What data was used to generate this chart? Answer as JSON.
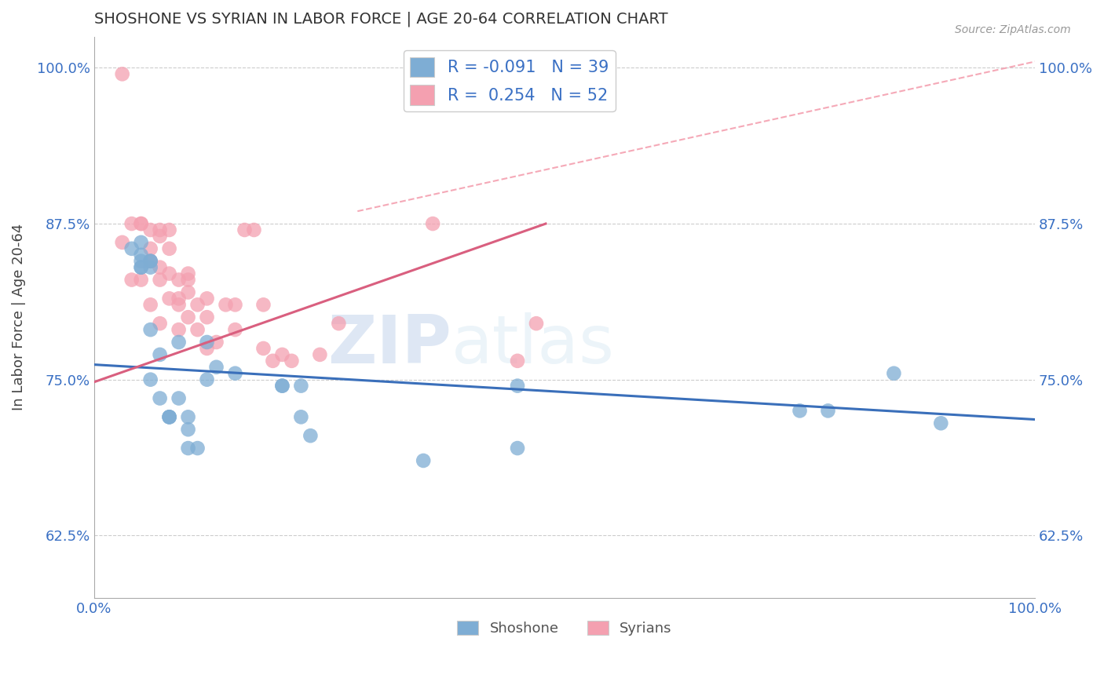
{
  "title": "SHOSHONE VS SYRIAN IN LABOR FORCE | AGE 20-64 CORRELATION CHART",
  "source_text": "Source: ZipAtlas.com",
  "xlabel": "",
  "ylabel": "In Labor Force | Age 20-64",
  "xlim": [
    0.0,
    1.0
  ],
  "ylim": [
    0.575,
    1.025
  ],
  "yticks": [
    0.625,
    0.75,
    0.875,
    1.0
  ],
  "ytick_labels": [
    "62.5%",
    "75.0%",
    "87.5%",
    "100.0%"
  ],
  "watermark_zip": "ZIP",
  "watermark_atlas": "atlas",
  "legend_r_blue": "-0.091",
  "legend_n_blue": "39",
  "legend_r_pink": "0.254",
  "legend_n_pink": "52",
  "blue_color": "#7eadd4",
  "pink_color": "#f4a0b0",
  "blue_line_color": "#3a6fba",
  "pink_line_color": "#d95f7f",
  "shoshone_points_x": [
    0.04,
    0.05,
    0.05,
    0.05,
    0.05,
    0.05,
    0.06,
    0.06,
    0.06,
    0.06,
    0.06,
    0.07,
    0.07,
    0.08,
    0.08,
    0.08,
    0.09,
    0.09,
    0.1,
    0.1,
    0.1,
    0.11,
    0.12,
    0.12,
    0.13,
    0.15,
    0.2,
    0.2,
    0.22,
    0.22,
    0.23,
    0.35,
    0.45,
    0.45,
    0.75,
    0.78,
    0.85,
    0.9
  ],
  "shoshone_points_y": [
    0.855,
    0.84,
    0.84,
    0.85,
    0.86,
    0.845,
    0.84,
    0.845,
    0.845,
    0.79,
    0.75,
    0.77,
    0.735,
    0.72,
    0.72,
    0.72,
    0.735,
    0.78,
    0.72,
    0.71,
    0.695,
    0.695,
    0.78,
    0.75,
    0.76,
    0.755,
    0.745,
    0.745,
    0.72,
    0.745,
    0.705,
    0.685,
    0.695,
    0.745,
    0.725,
    0.725,
    0.755,
    0.715
  ],
  "syrian_points_x": [
    0.03,
    0.03,
    0.04,
    0.04,
    0.05,
    0.05,
    0.05,
    0.06,
    0.06,
    0.06,
    0.06,
    0.07,
    0.07,
    0.07,
    0.07,
    0.07,
    0.08,
    0.08,
    0.08,
    0.08,
    0.09,
    0.09,
    0.09,
    0.09,
    0.1,
    0.1,
    0.1,
    0.1,
    0.11,
    0.11,
    0.12,
    0.12,
    0.12,
    0.13,
    0.14,
    0.15,
    0.15,
    0.16,
    0.17,
    0.18,
    0.18,
    0.19,
    0.2,
    0.21,
    0.24,
    0.26,
    0.36,
    0.45,
    0.47
  ],
  "syrian_points_y": [
    0.995,
    0.86,
    0.875,
    0.83,
    0.875,
    0.875,
    0.83,
    0.87,
    0.855,
    0.845,
    0.81,
    0.87,
    0.865,
    0.84,
    0.83,
    0.795,
    0.87,
    0.855,
    0.835,
    0.815,
    0.83,
    0.815,
    0.81,
    0.79,
    0.835,
    0.83,
    0.82,
    0.8,
    0.81,
    0.79,
    0.815,
    0.8,
    0.775,
    0.78,
    0.81,
    0.81,
    0.79,
    0.87,
    0.87,
    0.81,
    0.775,
    0.765,
    0.77,
    0.765,
    0.77,
    0.795,
    0.875,
    0.765,
    0.795
  ],
  "background_color": "#ffffff",
  "grid_color": "#cccccc",
  "ref_line_x_start": 0.28,
  "ref_line_y_start": 0.885,
  "ref_line_x_end": 1.0,
  "ref_line_y_end": 1.005,
  "blue_trend_x_start": 0.0,
  "blue_trend_y_start": 0.762,
  "blue_trend_x_end": 1.0,
  "blue_trend_y_end": 0.718,
  "pink_trend_x_start": 0.0,
  "pink_trend_y_start": 0.748,
  "pink_trend_x_end": 0.48,
  "pink_trend_y_end": 0.875
}
